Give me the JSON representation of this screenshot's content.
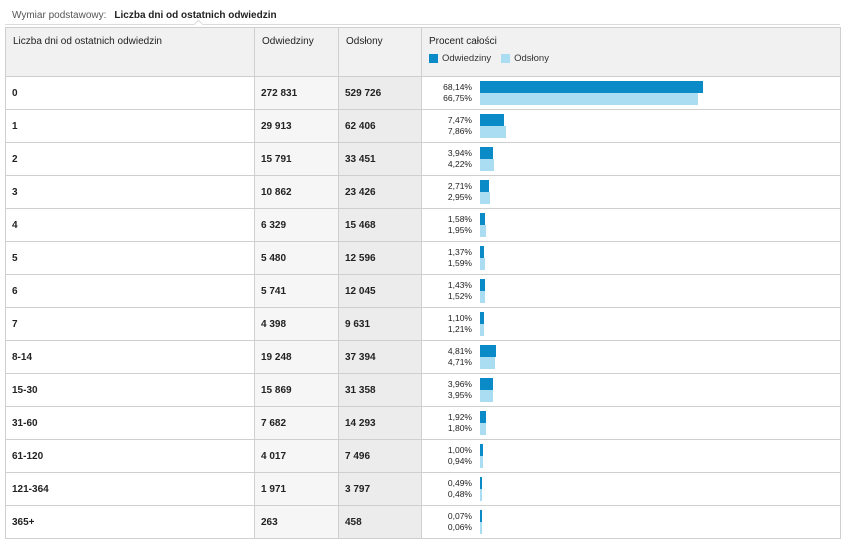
{
  "dimension": {
    "label": "Wymiar podstawowy:",
    "value": "Liczba dni od ostatnich odwiedzin"
  },
  "columns": {
    "dim": "Liczba dni od ostatnich odwiedzin",
    "visits": "Odwiedziny",
    "pageviews": "Odsłony",
    "percent": "Procent całości"
  },
  "colors": {
    "visits": "#0a8ac6",
    "pageviews": "#aadcf2"
  },
  "rows": [
    {
      "dim": "0",
      "visits": "272 831",
      "pageviews": "529 726",
      "pv": "68,14%",
      "pp": "66,75%"
    },
    {
      "dim": "1",
      "visits": "29 913",
      "pageviews": "62 406",
      "pv": "7,47%",
      "pp": "7,86%"
    },
    {
      "dim": "2",
      "visits": "15 791",
      "pageviews": "33 451",
      "pv": "3,94%",
      "pp": "4,22%"
    },
    {
      "dim": "3",
      "visits": "10 862",
      "pageviews": "23 426",
      "pv": "2,71%",
      "pp": "2,95%"
    },
    {
      "dim": "4",
      "visits": "6 329",
      "pageviews": "15 468",
      "pv": "1,58%",
      "pp": "1,95%"
    },
    {
      "dim": "5",
      "visits": "5 480",
      "pageviews": "12 596",
      "pv": "1,37%",
      "pp": "1,59%"
    },
    {
      "dim": "6",
      "visits": "5 741",
      "pageviews": "12 045",
      "pv": "1,43%",
      "pp": "1,52%"
    },
    {
      "dim": "7",
      "visits": "4 398",
      "pageviews": "9 631",
      "pv": "1,10%",
      "pp": "1,21%"
    },
    {
      "dim": "8-14",
      "visits": "19 248",
      "pageviews": "37 394",
      "pv": "4,81%",
      "pp": "4,71%"
    },
    {
      "dim": "15-30",
      "visits": "15 869",
      "pageviews": "31 358",
      "pv": "3,96%",
      "pp": "3,95%"
    },
    {
      "dim": "31-60",
      "visits": "7 682",
      "pageviews": "14 293",
      "pv": "1,92%",
      "pp": "1,80%"
    },
    {
      "dim": "61-120",
      "visits": "4 017",
      "pageviews": "7 496",
      "pv": "1,00%",
      "pp": "0,94%"
    },
    {
      "dim": "121-364",
      "visits": "1 971",
      "pageviews": "3 797",
      "pv": "0,49%",
      "pp": "0,48%"
    },
    {
      "dim": "365+",
      "visits": "263",
      "pageviews": "458",
      "pv": "0,07%",
      "pp": "0,06%"
    }
  ],
  "chart_data": {
    "type": "bar",
    "categories": [
      "0",
      "1",
      "2",
      "3",
      "4",
      "5",
      "6",
      "7",
      "8-14",
      "15-30",
      "31-60",
      "61-120",
      "121-364",
      "365+"
    ],
    "series": [
      {
        "name": "Odwiedziny",
        "values": [
          68.14,
          7.47,
          3.94,
          2.71,
          1.58,
          1.37,
          1.43,
          1.1,
          4.81,
          3.96,
          1.92,
          1.0,
          0.49,
          0.07
        ]
      },
      {
        "name": "Odsłony",
        "values": [
          66.75,
          7.86,
          4.22,
          2.95,
          1.95,
          1.59,
          1.52,
          1.21,
          4.71,
          3.95,
          1.8,
          0.94,
          0.48,
          0.06
        ]
      }
    ],
    "orientation": "horizontal",
    "ylabel": "Procent całości",
    "legend": "top"
  }
}
